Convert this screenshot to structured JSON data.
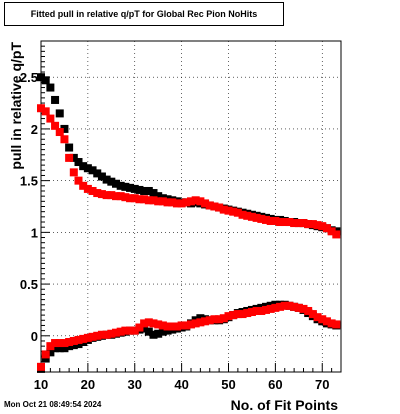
{
  "title": "Fitted pull in relative q/pT for Global Rec Pion NoHits",
  "timestamp": "Mon Oct 21 08:49:54 2024",
  "chart_data": {
    "type": "scatter",
    "title": "Fitted pull in relative q/pT for Global Rec Pion NoHits",
    "xlabel": "No. of Fit Points",
    "ylabel": "pull in relative q/pT",
    "xlim": [
      10,
      74
    ],
    "ylim": [
      -0.35,
      2.85
    ],
    "grid": true,
    "x_ticks": [
      10,
      20,
      30,
      40,
      50,
      60,
      70
    ],
    "y_ticks": [
      0,
      0.5,
      1,
      1.5,
      2,
      2.5
    ],
    "y_tick_labels": [
      "0",
      "0.5",
      "1",
      "1.5",
      "2",
      "2.5"
    ],
    "x": [
      10,
      11,
      12,
      13,
      14,
      15,
      16,
      17,
      18,
      19,
      20,
      21,
      22,
      23,
      24,
      25,
      26,
      27,
      28,
      29,
      30,
      31,
      32,
      33,
      34,
      35,
      36,
      37,
      38,
      39,
      40,
      41,
      42,
      43,
      44,
      45,
      46,
      47,
      48,
      49,
      50,
      51,
      52,
      53,
      54,
      55,
      56,
      57,
      58,
      59,
      60,
      61,
      62,
      63,
      64,
      65,
      66,
      67,
      68,
      69,
      70,
      71,
      72,
      73
    ],
    "series": [
      {
        "color": "#000000",
        "values": [
          2.5,
          2.47,
          2.4,
          2.28,
          2.15,
          2.0,
          1.82,
          1.72,
          1.68,
          1.64,
          1.62,
          1.6,
          1.57,
          1.54,
          1.51,
          1.49,
          1.47,
          1.45,
          1.44,
          1.43,
          1.42,
          1.41,
          1.4,
          1.4,
          1.38,
          1.35,
          1.33,
          1.32,
          1.31,
          1.3,
          1.29,
          1.29,
          1.28,
          1.29,
          1.28,
          1.27,
          1.26,
          1.25,
          1.24,
          1.23,
          1.22,
          1.21,
          1.2,
          1.19,
          1.18,
          1.17,
          1.16,
          1.15,
          1.14,
          1.13,
          1.12,
          1.12,
          1.11,
          1.1,
          1.1,
          1.09,
          1.09,
          1.08,
          1.07,
          1.06,
          1.05,
          1.04,
          1.02,
          1.01
        ]
      },
      {
        "color": "#ff0000",
        "values": [
          2.2,
          2.17,
          2.1,
          2.03,
          1.97,
          1.9,
          1.72,
          1.58,
          1.5,
          1.45,
          1.42,
          1.4,
          1.38,
          1.37,
          1.36,
          1.36,
          1.35,
          1.35,
          1.34,
          1.33,
          1.33,
          1.32,
          1.32,
          1.31,
          1.31,
          1.3,
          1.3,
          1.29,
          1.29,
          1.28,
          1.28,
          1.29,
          1.3,
          1.31,
          1.3,
          1.28,
          1.26,
          1.25,
          1.24,
          1.22,
          1.21,
          1.2,
          1.19,
          1.17,
          1.16,
          1.15,
          1.14,
          1.13,
          1.12,
          1.11,
          1.11,
          1.1,
          1.1,
          1.1,
          1.09,
          1.09,
          1.09,
          1.08,
          1.08,
          1.07,
          1.06,
          1.04,
          1.01,
          0.98
        ]
      },
      {
        "color": "#000000",
        "values": [
          -0.32,
          -0.22,
          -0.16,
          -0.12,
          -0.12,
          -0.12,
          -0.1,
          -0.09,
          -0.08,
          -0.06,
          -0.04,
          -0.02,
          -0.01,
          0.0,
          0.01,
          0.01,
          0.02,
          0.03,
          0.04,
          0.05,
          0.05,
          0.06,
          0.07,
          0.04,
          0.01,
          0.02,
          0.04,
          0.05,
          0.06,
          0.07,
          0.08,
          0.09,
          0.12,
          0.15,
          0.17,
          0.16,
          0.15,
          0.15,
          0.15,
          0.16,
          0.18,
          0.2,
          0.22,
          0.23,
          0.24,
          0.25,
          0.26,
          0.27,
          0.28,
          0.29,
          0.3,
          0.3,
          0.3,
          0.29,
          0.28,
          0.27,
          0.25,
          0.22,
          0.19,
          0.16,
          0.14,
          0.12,
          0.11,
          0.1
        ]
      },
      {
        "color": "#ff0000",
        "values": [
          -0.3,
          -0.18,
          -0.1,
          -0.07,
          -0.07,
          -0.07,
          -0.06,
          -0.05,
          -0.04,
          -0.03,
          -0.02,
          -0.01,
          0.0,
          0.01,
          0.01,
          0.02,
          0.03,
          0.04,
          0.05,
          0.05,
          0.05,
          0.08,
          0.12,
          0.13,
          0.12,
          0.11,
          0.1,
          0.09,
          0.09,
          0.09,
          0.1,
          0.1,
          0.11,
          0.12,
          0.13,
          0.14,
          0.15,
          0.16,
          0.16,
          0.17,
          0.19,
          0.2,
          0.21,
          0.21,
          0.22,
          0.23,
          0.24,
          0.24,
          0.25,
          0.26,
          0.27,
          0.28,
          0.29,
          0.29,
          0.28,
          0.27,
          0.26,
          0.24,
          0.21,
          0.18,
          0.16,
          0.14,
          0.12,
          0.11
        ]
      }
    ]
  }
}
